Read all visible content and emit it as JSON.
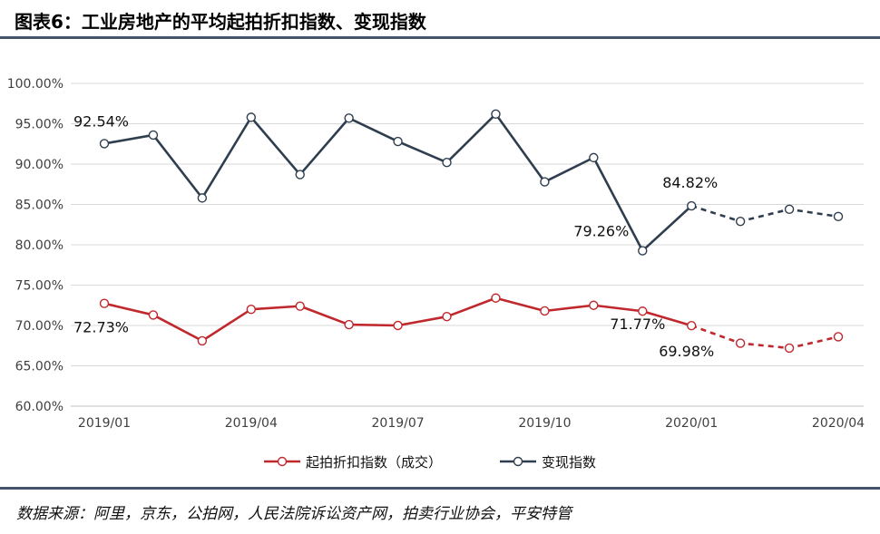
{
  "header": {
    "title": "图表6：工业房地产的平均起拍折扣指数、变现指数"
  },
  "footer": {
    "source": "数据来源：阿里，京东，公拍网，人民法院诉讼资产网，拍卖行业协会，平安特管"
  },
  "colors": {
    "series_discount": "#c0282d",
    "series_liquidity": "#2f3e4f",
    "rule": "#44546a",
    "grid": "#d9d9d9"
  },
  "chart_data": {
    "type": "line",
    "x": [
      "2019/01",
      "2019/02",
      "2019/03",
      "2019/04",
      "2019/05",
      "2019/06",
      "2019/07",
      "2019/08",
      "2019/09",
      "2019/10",
      "2019/11",
      "2019/12",
      "2020/01",
      "2020/02",
      "2020/03",
      "2020/04"
    ],
    "x_tick_labels": [
      "2019/01",
      "2019/04",
      "2019/07",
      "2019/10",
      "2020/01",
      "2020/04"
    ],
    "ylim": [
      60,
      100
    ],
    "y_tick_labels": [
      "100.00%",
      "95.00%",
      "90.00%",
      "85.00%",
      "80.00%",
      "75.00%",
      "70.00%",
      "65.00%",
      "60.00%"
    ],
    "y_ticks": [
      100,
      95,
      90,
      85,
      80,
      75,
      70,
      65,
      60
    ],
    "grid": true,
    "legend_position": "bottom",
    "series": [
      {
        "name": "起拍折扣指数（成交）",
        "color": "#c0282d",
        "values": [
          72.73,
          71.3,
          68.1,
          72.0,
          72.4,
          70.1,
          70.0,
          71.1,
          73.4,
          71.8,
          72.5,
          71.77,
          69.98,
          67.8,
          67.2,
          68.6
        ],
        "dashed_from_index": 12
      },
      {
        "name": "变现指数",
        "color": "#2f3e4f",
        "values": [
          92.54,
          93.6,
          85.8,
          95.8,
          88.7,
          95.7,
          92.8,
          90.2,
          96.2,
          87.8,
          90.8,
          79.26,
          84.82,
          82.9,
          84.4,
          83.5
        ],
        "dashed_from_index": 12
      }
    ],
    "annotations": [
      {
        "text": "92.54%",
        "series": 1,
        "index": 0
      },
      {
        "text": "79.26%",
        "series": 1,
        "index": 11
      },
      {
        "text": "84.82%",
        "series": 1,
        "index": 12
      },
      {
        "text": "72.73%",
        "series": 0,
        "index": 0
      },
      {
        "text": "71.77%",
        "series": 0,
        "index": 11
      },
      {
        "text": "69.98%",
        "series": 0,
        "index": 12
      }
    ]
  }
}
